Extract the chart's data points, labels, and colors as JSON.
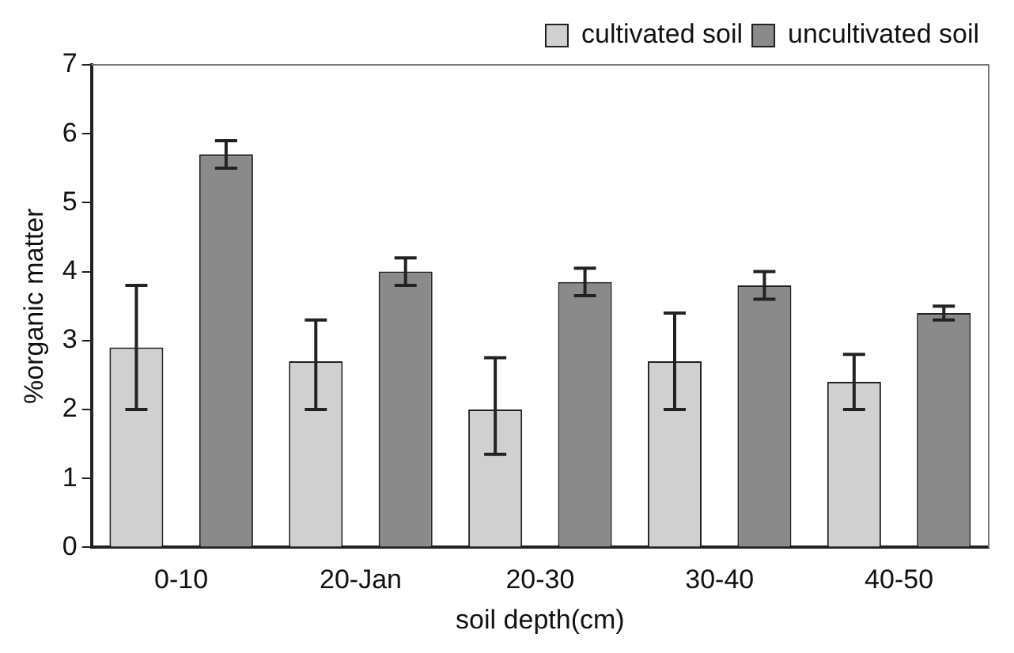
{
  "chart_data": {
    "type": "bar",
    "xlabel": "soil depth(cm)",
    "ylabel": "%organic matter",
    "categories": [
      "0-10",
      "20-Jan",
      "20-30",
      "30-40",
      "40-50"
    ],
    "series": [
      {
        "name": "cultivated soil",
        "color": "#d0d0d0",
        "values": [
          2.9,
          2.7,
          2.0,
          2.7,
          2.4
        ],
        "errors": [
          [
            2.0,
            3.8
          ],
          [
            2.0,
            3.3
          ],
          [
            1.35,
            2.75
          ],
          [
            2.0,
            3.4
          ],
          [
            2.0,
            2.8
          ]
        ]
      },
      {
        "name": "uncultivated soil",
        "color": "#8a8a8a",
        "values": [
          5.7,
          4.0,
          3.85,
          3.8,
          3.4
        ],
        "errors": [
          [
            5.5,
            5.9
          ],
          [
            3.8,
            4.2
          ],
          [
            3.65,
            4.05
          ],
          [
            3.6,
            4.0
          ],
          [
            3.3,
            3.5
          ]
        ]
      }
    ],
    "ylim": [
      0,
      7
    ],
    "yticks": [
      0,
      1,
      2,
      3,
      4,
      5,
      6,
      7
    ],
    "grid": false,
    "legend": "top right"
  }
}
